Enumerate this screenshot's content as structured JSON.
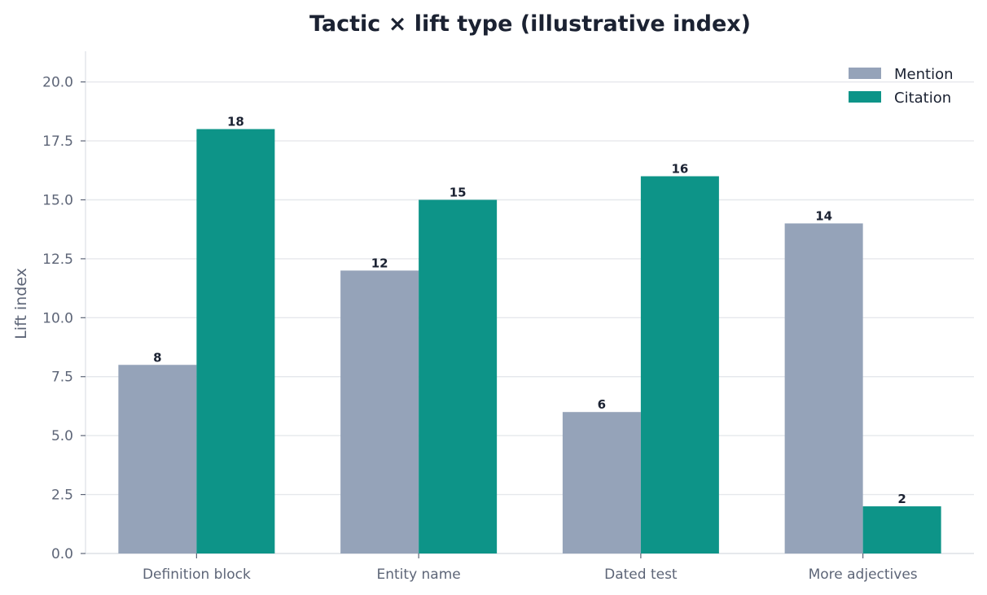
{
  "chart_data": {
    "type": "bar",
    "title": "Tactic × lift type (illustrative index)",
    "xlabel": "",
    "ylabel": "Lift index",
    "categories": [
      "Definition block",
      "Entity name",
      "Dated test",
      "More adjectives"
    ],
    "series": [
      {
        "name": "Mention",
        "values": [
          8,
          12,
          6,
          14
        ],
        "color": "#95a3b9"
      },
      {
        "name": "Citation",
        "values": [
          18,
          15,
          16,
          2
        ],
        "color": "#0d9488"
      }
    ],
    "ylim": [
      0,
      21.3
    ],
    "yticks": [
      0.0,
      2.5,
      5.0,
      7.5,
      10.0,
      12.5,
      15.0,
      17.5,
      20.0
    ],
    "ytick_labels": [
      "0.0",
      "2.5",
      "5.0",
      "7.5",
      "10.0",
      "12.5",
      "15.0",
      "17.5",
      "20.0"
    ],
    "grid": true,
    "legend": "top-right",
    "data_labels": true
  }
}
